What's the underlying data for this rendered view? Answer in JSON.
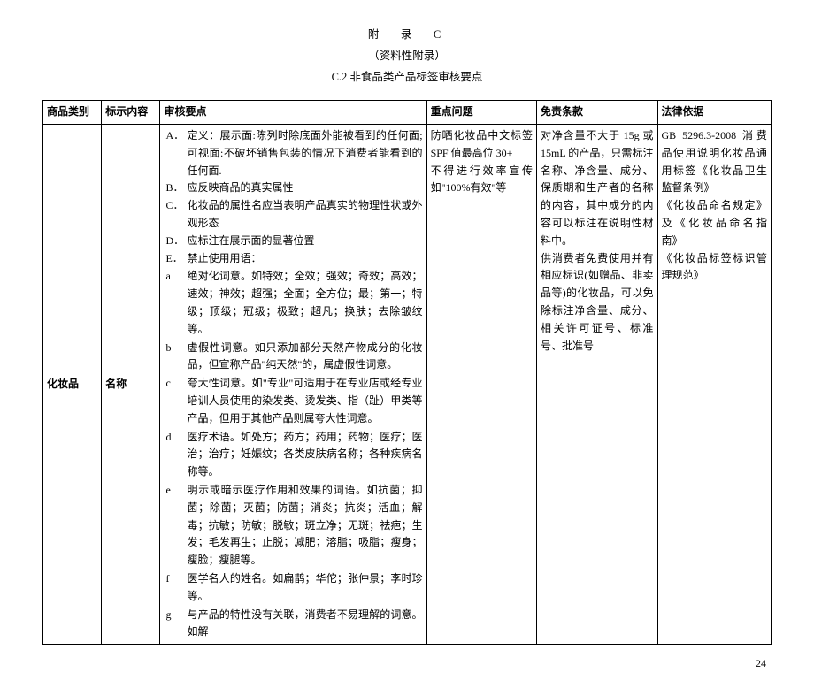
{
  "header": {
    "line1": "附　录　C",
    "line2": "（资料性附录）",
    "line3": "C.2 非食品类产品标签审核要点"
  },
  "columns": {
    "c1": "商品类别",
    "c2": "标示内容",
    "c3": "审核要点",
    "c4": "重点问题",
    "c5": "免责条款",
    "c6": "法律依据"
  },
  "row": {
    "category": "化妆品",
    "label": "名称",
    "keypoints": {
      "A": "定义：展示面:陈列时除底面外能被看到的任何面;可视面:不破坏销售包装的情况下消费者能看到的任何面.",
      "B": "应反映商品的真实属性",
      "C": "化妆品的属性名应当表明产品真实的物理性状或外观形态",
      "D": "应标注在展示面的显著位置",
      "E": "禁止使用用语：",
      "a": "绝对化词意。如特效；全效；强效；奇效；高效；速效；神效；超强；全面；全方位；最；第一；特级；顶级；冠级；极致；超凡；换肤；去除皱纹等。",
      "b": "虚假性词意。如只添加部分天然产物成分的化妆品，但宣称产品\"纯天然\"的，属虚假性词意。",
      "c": "夸大性词意。如\"专业\"可适用于在专业店或经专业培训人员使用的染发类、烫发类、指（趾）甲类等产品，但用于其他产品则属夸大性词意。",
      "d": "医疗术语。如处方；药方；药用；药物；医疗；医治；治疗；妊娠纹；各类皮肤病名称；各种疾病名称等。",
      "e": "明示或暗示医疗作用和效果的词语。如抗菌；抑菌；除菌；灭菌；防菌；消炎；抗炎；活血；解毒；抗敏；防敏；脱敏；斑立净；无斑；祛疤；生发；毛发再生；止脱；减肥；溶脂；吸脂；瘦身；瘦脸；瘦腿等。",
      "f": "医学名人的姓名。如扁鹊；华佗；张仲景；李时珍等。",
      "g": "与产品的特性没有关联，消费者不易理解的词意。如解"
    },
    "issues": "防晒化妆品中文标签SPF 值最高位 30+\n不得进行效率宣传如\"100%有效\"等",
    "exempt": "对净含量不大于 15g 或 15mL 的产品，只需标注名称、净含量、成分、保质期和生产者的名称的内容，其中成分的内容可以标注在说明性材料中。\n供消费者免费使用并有相应标识(如赠品、非卖品等)的化妆品，可以免除标注净含量、成分、相关许可证号、标准号、批准号",
    "law": "GB 5296.3-2008 消费品使用说明化妆品通用标签《化妆品卫生监督条例》\n《化妆品命名规定》及《化妆品命名指南》\n《化妆品标签标识管理规范》"
  },
  "pageNumber": "24"
}
